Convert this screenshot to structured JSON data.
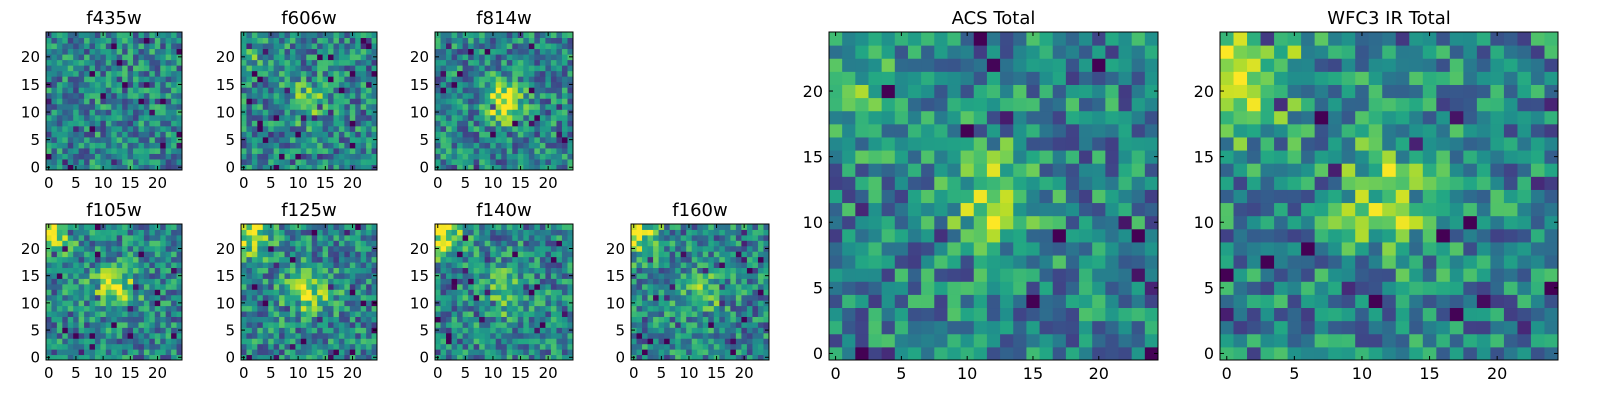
{
  "chart_data": [
    {
      "type": "heatmap",
      "title": "f435w",
      "size": 25,
      "xticks": [
        0,
        5,
        10,
        15,
        20
      ],
      "yticks": [
        0,
        5,
        10,
        15,
        20
      ],
      "colormap": "viridis",
      "blobs": []
    },
    {
      "type": "heatmap",
      "title": "f606w",
      "size": 25,
      "xticks": [
        0,
        5,
        10,
        15,
        20
      ],
      "yticks": [
        0,
        5,
        10,
        15,
        20
      ],
      "colormap": "viridis",
      "blobs": [
        {
          "cx": 12,
          "cy": 12,
          "amp": 0.25,
          "sigma": 3
        },
        {
          "cx": 1,
          "cy": 22,
          "amp": 0.2,
          "sigma": 3
        }
      ]
    },
    {
      "type": "heatmap",
      "title": "f814w",
      "size": 25,
      "xticks": [
        0,
        5,
        10,
        15,
        20
      ],
      "yticks": [
        0,
        5,
        10,
        15,
        20
      ],
      "colormap": "viridis",
      "blobs": [
        {
          "cx": 12,
          "cy": 12,
          "amp": 0.55,
          "sigma": 2.5
        }
      ]
    },
    {
      "type": "heatmap",
      "title": "f105w",
      "size": 25,
      "xticks": [
        0,
        5,
        10,
        15,
        20
      ],
      "yticks": [
        0,
        5,
        10,
        15,
        20
      ],
      "colormap": "viridis",
      "blobs": [
        {
          "cx": 12,
          "cy": 13,
          "amp": 0.4,
          "sigma": 3
        },
        {
          "cx": 0,
          "cy": 23,
          "amp": 0.55,
          "sigma": 3
        }
      ]
    },
    {
      "type": "heatmap",
      "title": "f125w",
      "size": 25,
      "xticks": [
        0,
        5,
        10,
        15,
        20
      ],
      "yticks": [
        0,
        5,
        10,
        15,
        20
      ],
      "colormap": "viridis",
      "blobs": [
        {
          "cx": 12,
          "cy": 12,
          "amp": 0.4,
          "sigma": 3
        },
        {
          "cx": 0,
          "cy": 23,
          "amp": 0.45,
          "sigma": 3.5
        }
      ]
    },
    {
      "type": "heatmap",
      "title": "f140w",
      "size": 25,
      "xticks": [
        0,
        5,
        10,
        15,
        20
      ],
      "yticks": [
        0,
        5,
        10,
        15,
        20
      ],
      "colormap": "viridis",
      "blobs": [
        {
          "cx": 12,
          "cy": 12,
          "amp": 0.35,
          "sigma": 3
        },
        {
          "cx": 0,
          "cy": 23,
          "amp": 0.6,
          "sigma": 3
        }
      ]
    },
    {
      "type": "heatmap",
      "title": "f160w",
      "size": 25,
      "xticks": [
        0,
        5,
        10,
        15,
        20
      ],
      "yticks": [
        0,
        5,
        10,
        15,
        20
      ],
      "colormap": "viridis",
      "blobs": [
        {
          "cx": 12,
          "cy": 12,
          "amp": 0.3,
          "sigma": 3
        },
        {
          "cx": 0,
          "cy": 23,
          "amp": 0.6,
          "sigma": 3
        }
      ]
    },
    {
      "type": "heatmap",
      "title": "ACS Total",
      "size": 25,
      "xticks": [
        0,
        5,
        10,
        15,
        20
      ],
      "yticks": [
        0,
        5,
        10,
        15,
        20
      ],
      "colormap": "viridis",
      "blobs": [
        {
          "cx": 12,
          "cy": 12,
          "amp": 0.45,
          "sigma": 2.5
        },
        {
          "cx": 1,
          "cy": 21,
          "amp": 0.25,
          "sigma": 3
        }
      ]
    },
    {
      "type": "heatmap",
      "title": "WFC3 IR Total",
      "size": 25,
      "xticks": [
        0,
        5,
        10,
        15,
        20
      ],
      "yticks": [
        0,
        5,
        10,
        15,
        20
      ],
      "colormap": "viridis",
      "blobs": [
        {
          "cx": 12,
          "cy": 12,
          "amp": 0.35,
          "sigma": 3
        },
        {
          "cx": 0,
          "cy": 22,
          "amp": 0.55,
          "sigma": 3.5
        }
      ]
    }
  ]
}
